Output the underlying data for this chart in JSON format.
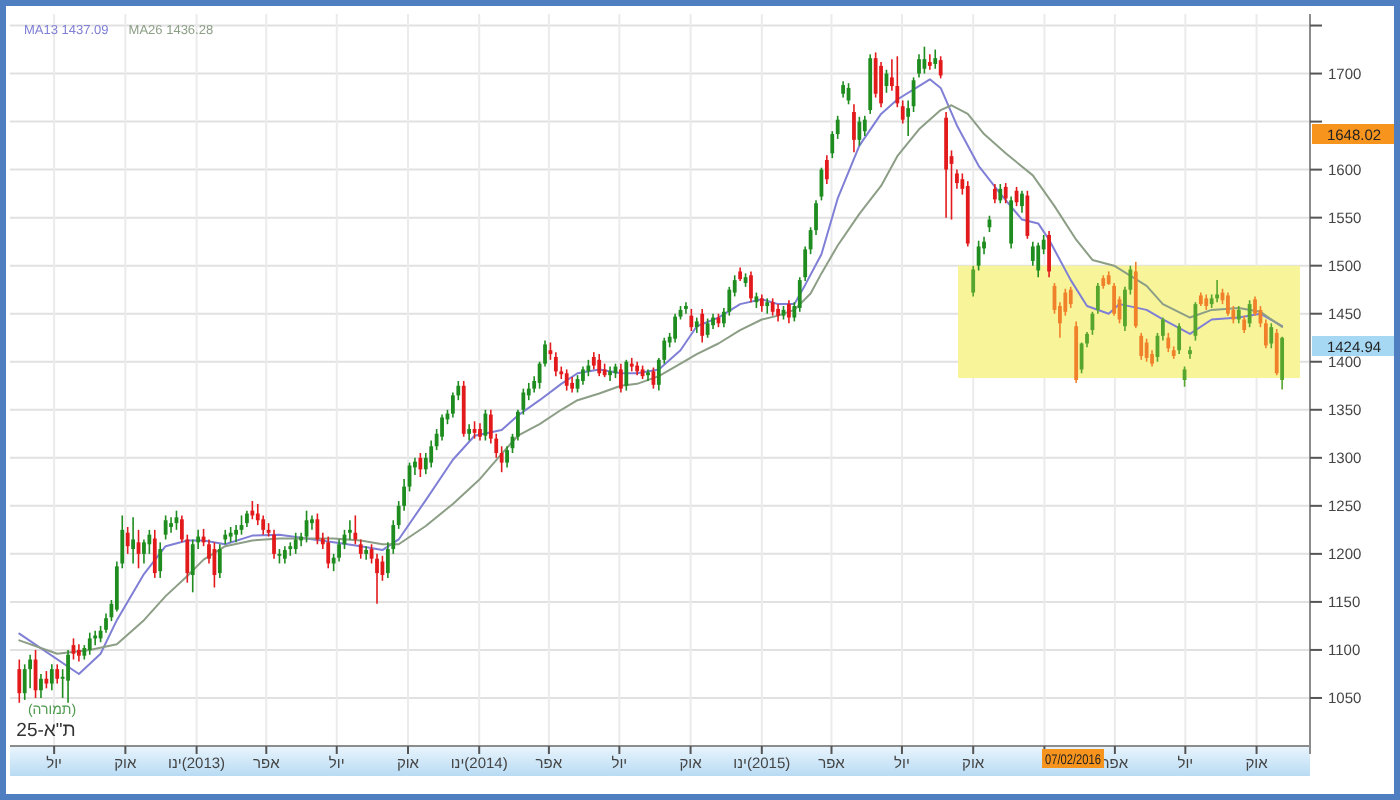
{
  "chart_data": {
    "type": "candlestick",
    "title": "ת\"א-25",
    "subtitle": "(תמורה)",
    "x": [
      "2012-05-17",
      "2012-05-24",
      "2012-05-31",
      "2012-06-07",
      "2012-06-14",
      "2012-06-21",
      "2012-06-28",
      "2012-07-05",
      "2012-07-12",
      "2012-07-19",
      "2012-07-26",
      "2012-08-02",
      "2012-08-09",
      "2012-08-16",
      "2012-08-23",
      "2012-08-30",
      "2012-09-06",
      "2012-09-13",
      "2012-09-20",
      "2012-09-27",
      "2012-10-04",
      "2012-10-11",
      "2012-10-18",
      "2012-10-25",
      "2012-11-01",
      "2012-11-08",
      "2012-11-15",
      "2012-11-22",
      "2012-11-29",
      "2012-12-06",
      "2012-12-13",
      "2012-12-20",
      "2012-12-27",
      "2013-01-03",
      "2013-01-10",
      "2013-01-17",
      "2013-01-24",
      "2013-01-31",
      "2013-02-07",
      "2013-02-14",
      "2013-02-21",
      "2013-02-28",
      "2013-03-07",
      "2013-03-14",
      "2013-03-21",
      "2013-03-28",
      "2013-04-04",
      "2013-04-11",
      "2013-04-18",
      "2013-04-25",
      "2013-05-02",
      "2013-05-09",
      "2013-05-16",
      "2013-05-23",
      "2013-05-30",
      "2013-06-06",
      "2013-06-13",
      "2013-06-20",
      "2013-06-27",
      "2013-07-04",
      "2013-07-11",
      "2013-07-18",
      "2013-07-25",
      "2013-08-01",
      "2013-08-08",
      "2013-08-15",
      "2013-08-22",
      "2013-08-29",
      "2013-09-05",
      "2013-09-12",
      "2013-09-19",
      "2013-09-26",
      "2013-10-03",
      "2013-10-10",
      "2013-10-17",
      "2013-10-24",
      "2013-10-31",
      "2013-11-07",
      "2013-11-14",
      "2013-11-21",
      "2013-11-28",
      "2013-12-05",
      "2013-12-12",
      "2013-12-19",
      "2013-12-26",
      "2014-01-02",
      "2014-01-09",
      "2014-01-16",
      "2014-01-23",
      "2014-01-30",
      "2014-02-06",
      "2014-02-13",
      "2014-02-20",
      "2014-02-27",
      "2014-03-06",
      "2014-03-13",
      "2014-03-20",
      "2014-03-27",
      "2014-04-03",
      "2014-04-10",
      "2014-04-17",
      "2014-04-24",
      "2014-05-01",
      "2014-05-08",
      "2014-05-15",
      "2014-05-22",
      "2014-05-29",
      "2014-06-05",
      "2014-06-12",
      "2014-06-19",
      "2014-06-26",
      "2014-07-03",
      "2014-07-10",
      "2014-07-17",
      "2014-07-24",
      "2014-07-31",
      "2014-08-07",
      "2014-08-14",
      "2014-08-21",
      "2014-08-28",
      "2014-09-04",
      "2014-09-11",
      "2014-09-18",
      "2014-09-25",
      "2014-10-02",
      "2014-10-09",
      "2014-10-16",
      "2014-10-23",
      "2014-10-30",
      "2014-11-06",
      "2014-11-13",
      "2014-11-20",
      "2014-11-27",
      "2014-12-04",
      "2014-12-11",
      "2014-12-18",
      "2014-12-25",
      "2015-01-01",
      "2015-01-08",
      "2015-01-15",
      "2015-01-22",
      "2015-01-29",
      "2015-02-05",
      "2015-02-12",
      "2015-02-19",
      "2015-02-26",
      "2015-03-05",
      "2015-03-12",
      "2015-03-19",
      "2015-03-26",
      "2015-04-02",
      "2015-04-09",
      "2015-04-16",
      "2015-04-23",
      "2015-04-30",
      "2015-05-07",
      "2015-05-14",
      "2015-05-21",
      "2015-05-28",
      "2015-06-04",
      "2015-06-11",
      "2015-06-18",
      "2015-06-25",
      "2015-07-02",
      "2015-07-09",
      "2015-07-16",
      "2015-07-23",
      "2015-07-30",
      "2015-08-06",
      "2015-08-13",
      "2015-08-20",
      "2015-08-27",
      "2015-09-03",
      "2015-09-10",
      "2015-09-17",
      "2015-09-24",
      "2015-10-01",
      "2015-10-08",
      "2015-10-15",
      "2015-10-22",
      "2015-10-29",
      "2015-11-05",
      "2015-11-12",
      "2015-11-19",
      "2015-11-26",
      "2015-12-03",
      "2015-12-10",
      "2015-12-17",
      "2015-12-24",
      "2015-12-31",
      "2016-01-07",
      "2016-01-14",
      "2016-01-21",
      "2016-01-28",
      "2016-02-04",
      "2016-02-11",
      "2016-02-18",
      "2016-02-25",
      "2016-03-03",
      "2016-03-10",
      "2016-03-17",
      "2016-03-24",
      "2016-03-31",
      "2016-04-07",
      "2016-04-14",
      "2016-04-21",
      "2016-04-28",
      "2016-05-05",
      "2016-05-12",
      "2016-05-19",
      "2016-05-26",
      "2016-06-02",
      "2016-06-09",
      "2016-06-16",
      "2016-06-23",
      "2016-06-30",
      "2016-07-07",
      "2016-07-14",
      "2016-07-21",
      "2016-07-28",
      "2016-08-04",
      "2016-08-11",
      "2016-08-18",
      "2016-08-25",
      "2016-09-01",
      "2016-09-08",
      "2016-09-15",
      "2016-09-22",
      "2016-09-29",
      "2016-10-06",
      "2016-10-13",
      "2016-10-20",
      "2016-10-27",
      "2016-11-03"
    ],
    "ohlc": [
      [
        1080,
        1090,
        1045,
        1055
      ],
      [
        1055,
        1085,
        1048,
        1080
      ],
      [
        1080,
        1095,
        1060,
        1090
      ],
      [
        1090,
        1100,
        1050,
        1058
      ],
      [
        1058,
        1075,
        1050,
        1070
      ],
      [
        1070,
        1078,
        1060,
        1065
      ],
      [
        1065,
        1085,
        1058,
        1080
      ],
      [
        1080,
        1085,
        1065,
        1070
      ],
      [
        1070,
        1080,
        1050,
        1072
      ],
      [
        1068,
        1100,
        1045,
        1095
      ],
      [
        1105,
        1112,
        1090,
        1096
      ],
      [
        1100,
        1106,
        1088,
        1094
      ],
      [
        1094,
        1105,
        1090,
        1102
      ],
      [
        1100,
        1118,
        1095,
        1112
      ],
      [
        1112,
        1120,
        1105,
        1115
      ],
      [
        1112,
        1125,
        1108,
        1120
      ],
      [
        1121,
        1138,
        1118,
        1133
      ],
      [
        1134,
        1152,
        1130,
        1148
      ],
      [
        1142,
        1192,
        1140,
        1187
      ],
      [
        1190,
        1240,
        1185,
        1225
      ],
      [
        1222,
        1228,
        1200,
        1208
      ],
      [
        1205,
        1238,
        1190,
        1215
      ],
      [
        1212,
        1225,
        1185,
        1200
      ],
      [
        1200,
        1215,
        1190,
        1212
      ],
      [
        1210,
        1225,
        1200,
        1220
      ],
      [
        1216,
        1225,
        1175,
        1180
      ],
      [
        1182,
        1212,
        1175,
        1205
      ],
      [
        1220,
        1240,
        1215,
        1235
      ],
      [
        1228,
        1238,
        1222,
        1232
      ],
      [
        1232,
        1245,
        1225,
        1238
      ],
      [
        1236,
        1240,
        1212,
        1215
      ],
      [
        1215,
        1220,
        1170,
        1180
      ],
      [
        1178,
        1215,
        1160,
        1210
      ],
      [
        1212,
        1225,
        1205,
        1218
      ],
      [
        1218,
        1226,
        1208,
        1212
      ],
      [
        1210,
        1215,
        1190,
        1195
      ],
      [
        1205,
        1212,
        1165,
        1178
      ],
      [
        1180,
        1210,
        1175,
        1205
      ],
      [
        1215,
        1225,
        1210,
        1220
      ],
      [
        1218,
        1228,
        1212,
        1222
      ],
      [
        1220,
        1230,
        1212,
        1225
      ],
      [
        1225,
        1240,
        1220,
        1230
      ],
      [
        1232,
        1245,
        1228,
        1242
      ],
      [
        1245,
        1255,
        1236,
        1240
      ],
      [
        1242,
        1252,
        1230,
        1235
      ],
      [
        1236,
        1240,
        1220,
        1225
      ],
      [
        1225,
        1232,
        1218,
        1222
      ],
      [
        1220,
        1225,
        1195,
        1200
      ],
      [
        1198,
        1205,
        1190,
        1200
      ],
      [
        1195,
        1208,
        1190,
        1204
      ],
      [
        1205,
        1212,
        1198,
        1208
      ],
      [
        1205,
        1222,
        1200,
        1215
      ],
      [
        1214,
        1222,
        1208,
        1218
      ],
      [
        1218,
        1245,
        1212,
        1235
      ],
      [
        1232,
        1240,
        1225,
        1236
      ],
      [
        1236,
        1242,
        1210,
        1215
      ],
      [
        1216,
        1222,
        1205,
        1210
      ],
      [
        1212,
        1218,
        1185,
        1190
      ],
      [
        1190,
        1200,
        1182,
        1196
      ],
      [
        1196,
        1215,
        1192,
        1210
      ],
      [
        1210,
        1225,
        1205,
        1220
      ],
      [
        1222,
        1235,
        1215,
        1225
      ],
      [
        1222,
        1240,
        1210,
        1215
      ],
      [
        1210,
        1215,
        1195,
        1200
      ],
      [
        1200,
        1208,
        1194,
        1204
      ],
      [
        1205,
        1210,
        1190,
        1195
      ],
      [
        1195,
        1200,
        1148,
        1180
      ],
      [
        1192,
        1198,
        1172,
        1178
      ],
      [
        1180,
        1212,
        1175,
        1205
      ],
      [
        1205,
        1235,
        1200,
        1230
      ],
      [
        1230,
        1255,
        1226,
        1250
      ],
      [
        1250,
        1278,
        1245,
        1270
      ],
      [
        1270,
        1295,
        1265,
        1292
      ],
      [
        1290,
        1300,
        1282,
        1296
      ],
      [
        1300,
        1305,
        1280,
        1288
      ],
      [
        1288,
        1305,
        1283,
        1300
      ],
      [
        1295,
        1318,
        1290,
        1312
      ],
      [
        1312,
        1330,
        1308,
        1325
      ],
      [
        1322,
        1345,
        1318,
        1342
      ],
      [
        1340,
        1350,
        1335,
        1346
      ],
      [
        1346,
        1368,
        1342,
        1365
      ],
      [
        1365,
        1380,
        1360,
        1375
      ],
      [
        1375,
        1380,
        1322,
        1325
      ],
      [
        1325,
        1335,
        1318,
        1330
      ],
      [
        1330,
        1338,
        1320,
        1326
      ],
      [
        1330,
        1336,
        1318,
        1322
      ],
      [
        1323,
        1350,
        1318,
        1346
      ],
      [
        1345,
        1350,
        1315,
        1320
      ],
      [
        1320,
        1325,
        1300,
        1305
      ],
      [
        1305,
        1312,
        1285,
        1295
      ],
      [
        1295,
        1312,
        1290,
        1308
      ],
      [
        1310,
        1325,
        1305,
        1322
      ],
      [
        1322,
        1350,
        1318,
        1348
      ],
      [
        1350,
        1372,
        1345,
        1368
      ],
      [
        1365,
        1378,
        1360,
        1372
      ],
      [
        1372,
        1385,
        1368,
        1380
      ],
      [
        1378,
        1400,
        1372,
        1398
      ],
      [
        1398,
        1422,
        1395,
        1418
      ],
      [
        1412,
        1420,
        1402,
        1408
      ],
      [
        1405,
        1410,
        1385,
        1390
      ],
      [
        1390,
        1395,
        1382,
        1387
      ],
      [
        1388,
        1392,
        1370,
        1375
      ],
      [
        1378,
        1384,
        1368,
        1372
      ],
      [
        1372,
        1386,
        1368,
        1382
      ],
      [
        1380,
        1395,
        1376,
        1392
      ],
      [
        1390,
        1402,
        1385,
        1396
      ],
      [
        1405,
        1410,
        1392,
        1396
      ],
      [
        1402,
        1408,
        1385,
        1388
      ],
      [
        1392,
        1398,
        1384,
        1386
      ],
      [
        1386,
        1395,
        1380,
        1390
      ],
      [
        1388,
        1398,
        1383,
        1395
      ],
      [
        1392,
        1398,
        1368,
        1372
      ],
      [
        1375,
        1402,
        1370,
        1400
      ],
      [
        1398,
        1404,
        1390,
        1395
      ],
      [
        1396,
        1400,
        1386,
        1390
      ],
      [
        1392,
        1396,
        1382,
        1385
      ],
      [
        1386,
        1392,
        1380,
        1389
      ],
      [
        1390,
        1394,
        1372,
        1376
      ],
      [
        1376,
        1404,
        1370,
        1402
      ],
      [
        1402,
        1425,
        1398,
        1422
      ],
      [
        1420,
        1430,
        1415,
        1426
      ],
      [
        1424,
        1450,
        1420,
        1447
      ],
      [
        1447,
        1458,
        1444,
        1454
      ],
      [
        1455,
        1462,
        1450,
        1458
      ],
      [
        1448,
        1455,
        1432,
        1436
      ],
      [
        1436,
        1446,
        1430,
        1442
      ],
      [
        1450,
        1455,
        1420,
        1427
      ],
      [
        1428,
        1445,
        1425,
        1440
      ],
      [
        1438,
        1450,
        1434,
        1446
      ],
      [
        1446,
        1450,
        1436,
        1440
      ],
      [
        1440,
        1456,
        1436,
        1452
      ],
      [
        1452,
        1478,
        1448,
        1475
      ],
      [
        1472,
        1490,
        1468,
        1485
      ],
      [
        1494,
        1498,
        1484,
        1486
      ],
      [
        1482,
        1492,
        1478,
        1488
      ],
      [
        1490,
        1494,
        1462,
        1466
      ],
      [
        1462,
        1472,
        1456,
        1468
      ],
      [
        1466,
        1470,
        1452,
        1458
      ],
      [
        1458,
        1466,
        1450,
        1462
      ],
      [
        1462,
        1466,
        1448,
        1452
      ],
      [
        1455,
        1460,
        1442,
        1448
      ],
      [
        1448,
        1458,
        1444,
        1454
      ],
      [
        1460,
        1464,
        1440,
        1446
      ],
      [
        1446,
        1462,
        1442,
        1458
      ],
      [
        1456,
        1488,
        1452,
        1485
      ],
      [
        1488,
        1520,
        1484,
        1517
      ],
      [
        1517,
        1540,
        1512,
        1537
      ],
      [
        1537,
        1568,
        1532,
        1565
      ],
      [
        1572,
        1602,
        1568,
        1600
      ],
      [
        1610,
        1615,
        1585,
        1590
      ],
      [
        1617,
        1640,
        1612,
        1637
      ],
      [
        1637,
        1656,
        1632,
        1652
      ],
      [
        1679,
        1692,
        1675,
        1688
      ],
      [
        1672,
        1690,
        1668,
        1685
      ],
      [
        1660,
        1668,
        1618,
        1631
      ],
      [
        1631,
        1655,
        1625,
        1650
      ],
      [
        1640,
        1656,
        1635,
        1652
      ],
      [
        1662,
        1720,
        1658,
        1716
      ],
      [
        1716,
        1722,
        1675,
        1679
      ],
      [
        1708,
        1712,
        1665,
        1669
      ],
      [
        1687,
        1704,
        1680,
        1700
      ],
      [
        1696,
        1715,
        1682,
        1687
      ],
      [
        1687,
        1718,
        1665,
        1669
      ],
      [
        1666,
        1672,
        1648,
        1652
      ],
      [
        1655,
        1672,
        1635,
        1664
      ],
      [
        1666,
        1696,
        1660,
        1693
      ],
      [
        1700,
        1720,
        1696,
        1715
      ],
      [
        1705,
        1728,
        1700,
        1715
      ],
      [
        1712,
        1720,
        1704,
        1708
      ],
      [
        1710,
        1725,
        1705,
        1716
      ],
      [
        1714,
        1718,
        1695,
        1698
      ],
      [
        1654,
        1660,
        1550,
        1600
      ],
      [
        1614,
        1620,
        1548,
        1606
      ],
      [
        1596,
        1600,
        1580,
        1586
      ],
      [
        1590,
        1596,
        1574,
        1580
      ],
      [
        1583,
        1588,
        1520,
        1523
      ],
      [
        1472,
        1500,
        1468,
        1496
      ],
      [
        1500,
        1526,
        1495,
        1520
      ],
      [
        1518,
        1530,
        1512,
        1525
      ],
      [
        1540,
        1552,
        1535,
        1548
      ],
      [
        1580,
        1585,
        1565,
        1569
      ],
      [
        1568,
        1585,
        1565,
        1580
      ],
      [
        1582,
        1586,
        1565,
        1570
      ],
      [
        1523,
        1572,
        1518,
        1568
      ],
      [
        1578,
        1582,
        1562,
        1566
      ],
      [
        1562,
        1578,
        1555,
        1575
      ],
      [
        1573,
        1578,
        1528,
        1531
      ],
      [
        1505,
        1525,
        1500,
        1520
      ],
      [
        1495,
        1524,
        1488,
        1521
      ],
      [
        1517,
        1532,
        1512,
        1527
      ],
      [
        1532,
        1536,
        1488,
        1494
      ],
      [
        1479,
        1482,
        1450,
        1454
      ],
      [
        1458,
        1462,
        1425,
        1440
      ],
      [
        1472,
        1476,
        1448,
        1452
      ],
      [
        1475,
        1478,
        1456,
        1460
      ],
      [
        1437,
        1442,
        1378,
        1381
      ],
      [
        1392,
        1420,
        1388,
        1419
      ],
      [
        1419,
        1431,
        1415,
        1429
      ],
      [
        1433,
        1452,
        1428,
        1450
      ],
      [
        1454,
        1482,
        1450,
        1479
      ],
      [
        1487,
        1490,
        1476,
        1479
      ],
      [
        1490,
        1494,
        1480,
        1481
      ],
      [
        1479,
        1482,
        1448,
        1450
      ],
      [
        1465,
        1468,
        1440,
        1444
      ],
      [
        1437,
        1478,
        1432,
        1475
      ],
      [
        1475,
        1500,
        1470,
        1496
      ],
      [
        1494,
        1504,
        1435,
        1437
      ],
      [
        1427,
        1430,
        1402,
        1406
      ],
      [
        1420,
        1424,
        1400,
        1404
      ],
      [
        1408,
        1412,
        1395,
        1398
      ],
      [
        1405,
        1430,
        1400,
        1427
      ],
      [
        1427,
        1446,
        1422,
        1444
      ],
      [
        1425,
        1430,
        1410,
        1414
      ],
      [
        1412,
        1416,
        1403,
        1406
      ],
      [
        1412,
        1440,
        1408,
        1437
      ],
      [
        1381,
        1395,
        1374,
        1392
      ],
      [
        1408,
        1416,
        1403,
        1412
      ],
      [
        1427,
        1462,
        1422,
        1460
      ],
      [
        1469,
        1472,
        1458,
        1460
      ],
      [
        1466,
        1470,
        1454,
        1458
      ],
      [
        1460,
        1470,
        1456,
        1466
      ],
      [
        1466,
        1485,
        1462,
        1470
      ],
      [
        1472,
        1476,
        1460,
        1464
      ],
      [
        1469,
        1472,
        1448,
        1450
      ],
      [
        1454,
        1458,
        1440,
        1444
      ],
      [
        1444,
        1458,
        1440,
        1454
      ],
      [
        1444,
        1448,
        1430,
        1433
      ],
      [
        1440,
        1464,
        1436,
        1460
      ],
      [
        1465,
        1468,
        1448,
        1450
      ],
      [
        1454,
        1458,
        1436,
        1440
      ],
      [
        1440,
        1444,
        1414,
        1417
      ],
      [
        1419,
        1440,
        1414,
        1436
      ],
      [
        1430,
        1434,
        1386,
        1388
      ],
      [
        1381,
        1426,
        1371,
        1424.94
      ]
    ],
    "colors": [
      "#e31a1c",
      "#1e8c1e",
      "#1e8c1e",
      "#e31a1c",
      "#1e8c1e",
      "#e31a1c",
      "#1e8c1e",
      "#e31a1c",
      "#1e8c1e",
      "#1e8c1e",
      "#e31a1c",
      "#e31a1c",
      "#1e8c1e",
      "#1e8c1e",
      "#1e8c1e",
      "#1e8c1e",
      "#1e8c1e",
      "#1e8c1e",
      "#1e8c1e",
      "#1e8c1e",
      "#e31a1c",
      "#1e8c1e",
      "#e31a1c",
      "#1e8c1e",
      "#1e8c1e",
      "#e31a1c",
      "#1e8c1e",
      "#1e8c1e",
      "#1e8c1e",
      "#1e8c1e",
      "#e31a1c",
      "#e31a1c",
      "#1e8c1e",
      "#1e8c1e",
      "#e31a1c",
      "#e31a1c",
      "#e31a1c",
      "#1e8c1e",
      "#1e8c1e",
      "#1e8c1e",
      "#1e8c1e",
      "#1e8c1e",
      "#1e8c1e",
      "#e31a1c",
      "#e31a1c",
      "#e31a1c",
      "#e31a1c",
      "#e31a1c",
      "#1e8c1e",
      "#1e8c1e",
      "#1e8c1e",
      "#1e8c1e",
      "#1e8c1e",
      "#1e8c1e",
      "#1e8c1e",
      "#e31a1c",
      "#e31a1c",
      "#e31a1c",
      "#1e8c1e",
      "#1e8c1e",
      "#1e8c1e",
      "#1e8c1e",
      "#e31a1c",
      "#e31a1c",
      "#1e8c1e",
      "#e31a1c",
      "#e31a1c",
      "#e31a1c",
      "#1e8c1e",
      "#1e8c1e",
      "#1e8c1e",
      "#1e8c1e",
      "#1e8c1e",
      "#1e8c1e",
      "#e31a1c",
      "#1e8c1e",
      "#1e8c1e",
      "#1e8c1e",
      "#1e8c1e",
      "#1e8c1e",
      "#1e8c1e",
      "#1e8c1e",
      "#e31a1c",
      "#1e8c1e",
      "#e31a1c",
      "#e31a1c",
      "#1e8c1e",
      "#e31a1c",
      "#e31a1c",
      "#e31a1c",
      "#1e8c1e",
      "#1e8c1e",
      "#1e8c1e",
      "#1e8c1e",
      "#1e8c1e",
      "#1e8c1e",
      "#1e8c1e",
      "#1e8c1e",
      "#e31a1c",
      "#e31a1c",
      "#e31a1c",
      "#e31a1c",
      "#e31a1c",
      "#1e8c1e",
      "#1e8c1e",
      "#1e8c1e",
      "#e31a1c",
      "#e31a1c",
      "#e31a1c",
      "#1e8c1e",
      "#1e8c1e",
      "#e31a1c",
      "#1e8c1e",
      "#e31a1c",
      "#e31a1c",
      "#e31a1c",
      "#1e8c1e",
      "#e31a1c",
      "#1e8c1e",
      "#1e8c1e",
      "#1e8c1e",
      "#1e8c1e",
      "#1e8c1e",
      "#1e8c1e",
      "#e31a1c",
      "#1e8c1e",
      "#e31a1c",
      "#1e8c1e",
      "#1e8c1e",
      "#e31a1c",
      "#1e8c1e",
      "#1e8c1e",
      "#1e8c1e",
      "#e31a1c",
      "#1e8c1e",
      "#e31a1c",
      "#1e8c1e",
      "#e31a1c",
      "#1e8c1e",
      "#e31a1c",
      "#e31a1c",
      "#1e8c1e",
      "#e31a1c",
      "#1e8c1e",
      "#1e8c1e",
      "#1e8c1e",
      "#1e8c1e",
      "#1e8c1e",
      "#1e8c1e",
      "#e31a1c",
      "#1e8c1e",
      "#1e8c1e",
      "#1e8c1e",
      "#1e8c1e",
      "#e31a1c",
      "#1e8c1e",
      "#1e8c1e",
      "#1e8c1e",
      "#e31a1c",
      "#e31a1c",
      "#1e8c1e",
      "#e31a1c",
      "#e31a1c",
      "#e31a1c",
      "#1e8c1e",
      "#1e8c1e",
      "#1e8c1e",
      "#1e8c1e",
      "#e31a1c",
      "#1e8c1e",
      "#e31a1c",
      "#e31a1c",
      "#e31a1c",
      "#e31a1c",
      "#e31a1c",
      "#e31a1c",
      "#56a52c",
      "#1e8c1e",
      "#1e8c1e",
      "#1e8c1e",
      "#e31a1c",
      "#1e8c1e",
      "#e31a1c",
      "#1e8c1e",
      "#e31a1c",
      "#1e8c1e",
      "#e31a1c",
      "#1e8c1e",
      "#1e8c1e",
      "#1e8c1e",
      "#e31a1c",
      "#f0802a",
      "#f0802a",
      "#f0802a",
      "#f0802a",
      "#f0802a",
      "#56a52c",
      "#56a52c",
      "#56a52c",
      "#56a52c",
      "#f0802a",
      "#f0802a",
      "#f0802a",
      "#f0802a",
      "#56a52c",
      "#56a52c",
      "#f0802a",
      "#f0802a",
      "#f0802a",
      "#f0802a",
      "#56a52c",
      "#56a52c",
      "#f0802a",
      "#f0802a",
      "#56a52c",
      "#56a52c",
      "#56a52c",
      "#56a52c",
      "#f0802a",
      "#f0802a",
      "#56a52c",
      "#56a52c",
      "#f0802a",
      "#f0802a",
      "#f0802a",
      "#56a52c",
      "#f0802a",
      "#56a52c",
      "#f0802a",
      "#f0802a",
      "#f0802a",
      "#56a52c",
      "#f0802a",
      "#56a52c"
    ],
    "series": [
      {
        "name": "MA13 1437.09",
        "type": "line",
        "color": "#7f7fd6",
        "x": [
          "2012-05-17",
          "2012-08-02",
          "2012-08-30",
          "2012-09-20",
          "2012-10-25",
          "2012-11-22",
          "2012-12-20",
          "2013-01-10",
          "2013-02-07",
          "2013-03-14",
          "2013-04-18",
          "2013-05-23",
          "2013-06-27",
          "2013-08-01",
          "2013-08-29",
          "2013-09-19",
          "2013-10-24",
          "2013-11-28",
          "2013-12-26",
          "2014-01-30",
          "2014-02-20",
          "2014-03-20",
          "2014-04-17",
          "2014-05-08",
          "2014-06-05",
          "2014-07-03",
          "2014-07-24",
          "2014-08-21",
          "2014-09-18",
          "2014-10-09",
          "2014-11-06",
          "2014-12-04",
          "2015-01-01",
          "2015-01-22",
          "2015-02-12",
          "2015-02-26",
          "2015-03-19",
          "2015-04-09",
          "2015-05-07",
          "2015-06-04",
          "2015-06-25",
          "2015-07-23",
          "2015-08-06",
          "2015-08-20",
          "2015-09-10",
          "2015-10-08",
          "2015-11-05",
          "2015-12-03",
          "2015-12-24",
          "2016-01-07",
          "2016-02-04",
          "2016-02-25",
          "2016-03-24",
          "2016-04-07",
          "2016-05-12",
          "2016-06-02",
          "2016-07-07",
          "2016-08-04",
          "2016-09-08",
          "2016-10-06",
          "2016-11-03"
        ],
        "values": [
          1117,
          1075,
          1096,
          1131,
          1179,
          1208,
          1214,
          1214,
          1210,
          1219,
          1220,
          1216,
          1212,
          1208,
          1204,
          1215,
          1256,
          1298,
          1323,
          1329,
          1344,
          1360,
          1377,
          1388,
          1392,
          1388,
          1388,
          1392,
          1412,
          1437,
          1446,
          1460,
          1465,
          1460,
          1460,
          1480,
          1512,
          1570,
          1625,
          1658,
          1673,
          1687,
          1694,
          1685,
          1646,
          1604,
          1575,
          1548,
          1544,
          1527,
          1485,
          1458,
          1450,
          1460,
          1454,
          1444,
          1429,
          1444,
          1446,
          1450,
          1437.09
        ]
      },
      {
        "name": "MA26 1436.28",
        "type": "line",
        "color": "#8c9e86",
        "x": [
          "2012-05-17",
          "2012-07-05",
          "2012-08-16",
          "2012-09-20",
          "2012-10-25",
          "2012-11-22",
          "2012-12-20",
          "2013-01-10",
          "2013-02-07",
          "2013-03-14",
          "2013-04-18",
          "2013-06-27",
          "2013-08-01",
          "2013-08-29",
          "2013-09-19",
          "2013-10-24",
          "2013-11-28",
          "2014-01-02",
          "2014-01-30",
          "2014-02-20",
          "2014-03-20",
          "2014-04-17",
          "2014-05-08",
          "2014-06-05",
          "2014-07-03",
          "2014-07-24",
          "2014-08-21",
          "2014-09-18",
          "2014-10-09",
          "2014-11-06",
          "2014-12-04",
          "2015-01-01",
          "2015-01-22",
          "2015-02-12",
          "2015-03-05",
          "2015-03-19",
          "2015-04-09",
          "2015-05-07",
          "2015-06-04",
          "2015-06-25",
          "2015-07-23",
          "2015-08-20",
          "2015-09-03",
          "2015-09-24",
          "2015-10-15",
          "2015-11-12",
          "2015-12-17",
          "2016-01-14",
          "2016-02-11",
          "2016-03-03",
          "2016-03-31",
          "2016-05-12",
          "2016-06-02",
          "2016-07-07",
          "2016-08-04",
          "2016-09-08",
          "2016-10-06",
          "2016-11-03"
        ],
        "values": [
          1110,
          1096,
          1100,
          1106,
          1131,
          1156,
          1177,
          1194,
          1208,
          1214,
          1216,
          1216,
          1214,
          1210,
          1210,
          1229,
          1252,
          1278,
          1304,
          1323,
          1335,
          1350,
          1360,
          1367,
          1375,
          1377,
          1385,
          1398,
          1408,
          1419,
          1433,
          1444,
          1448,
          1454,
          1471,
          1492,
          1521,
          1554,
          1583,
          1614,
          1642,
          1662,
          1667,
          1658,
          1637,
          1617,
          1594,
          1562,
          1527,
          1506,
          1500,
          1479,
          1460,
          1446,
          1454,
          1456,
          1452,
          1436.28
        ]
      }
    ],
    "xlim": [
      "2012-05-05",
      "2016-12-09"
    ],
    "xticks": [
      {
        "value": "2012-07-01",
        "label": "יול"
      },
      {
        "value": "2012-10-01",
        "label": "אוק"
      },
      {
        "value": "2013-01-01",
        "label": "(2013)ינו"
      },
      {
        "value": "2013-04-01",
        "label": "אפר"
      },
      {
        "value": "2013-07-01",
        "label": "יול"
      },
      {
        "value": "2013-10-01",
        "label": "אוק"
      },
      {
        "value": "2014-01-01",
        "label": "(2014)ינו"
      },
      {
        "value": "2014-04-01",
        "label": "אפר"
      },
      {
        "value": "2014-07-01",
        "label": "יול"
      },
      {
        "value": "2014-10-01",
        "label": "אוק"
      },
      {
        "value": "2015-01-01",
        "label": "(2015)ינו"
      },
      {
        "value": "2015-04-01",
        "label": "אפר"
      },
      {
        "value": "2015-07-01",
        "label": "יול"
      },
      {
        "value": "2015-10-01",
        "label": "אוק"
      },
      {
        "value": "2016-01-01",
        "label": null
      },
      {
        "value": "2016-04-01",
        "label": "אפר"
      },
      {
        "value": "2016-07-01",
        "label": "יול"
      },
      {
        "value": "2016-10-01",
        "label": "אוק"
      }
    ],
    "ylim": [
      1000,
      1762
    ],
    "yticks": [
      1050,
      1100,
      1150,
      1200,
      1250,
      1300,
      1350,
      1400,
      1450,
      1500,
      1550,
      1600,
      {
        "value": 1650,
        "label": null
      },
      1700,
      {
        "value": 1750,
        "label": null
      }
    ],
    "bands": [
      {
        "axis": "y",
        "from": 1383,
        "to": 1500,
        "color": "#f8f49a"
      }
    ],
    "annotations": [
      "1648.02",
      "1424.94",
      "07/02/2016"
    ],
    "grid": true,
    "legend": "top left"
  }
}
